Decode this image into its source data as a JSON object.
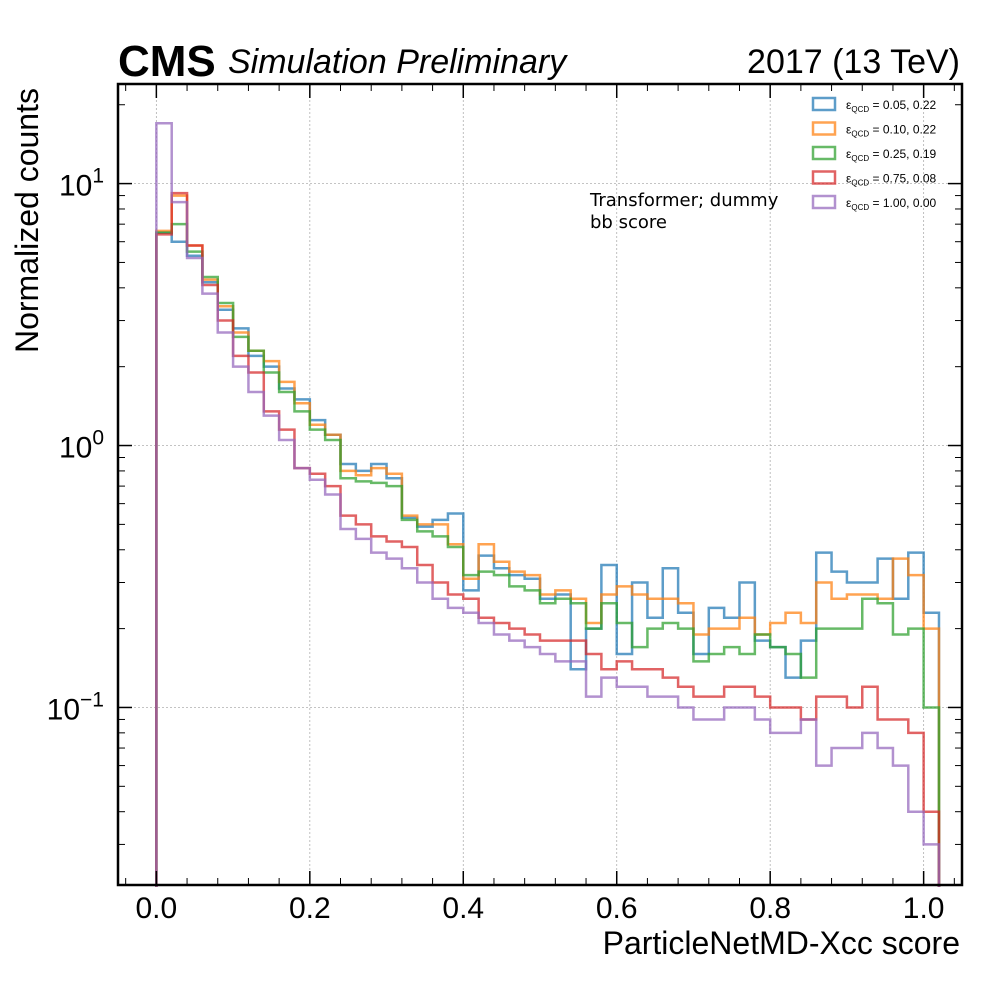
{
  "header": {
    "experiment": "CMS",
    "status": "Simulation Preliminary",
    "lumi": "2017 (13 TeV)"
  },
  "annotation": {
    "line1": "Transformer; dummy",
    "line2": "bb score"
  },
  "chart_data": {
    "type": "histogram-step",
    "xlabel": "ParticleNetMD-Xcc score",
    "ylabel": "Normalized counts",
    "xlim": [
      -0.05,
      1.05
    ],
    "ylim": [
      0.021,
      24
    ],
    "yscale": "log",
    "grid": true,
    "legend_position": "top-right",
    "x_ticks": [
      "0.0",
      "0.2",
      "0.4",
      "0.6",
      "0.8",
      "1.0"
    ],
    "y_tick_mantissa": "10",
    "y_tick_exponents": [
      "1",
      "0",
      "−1"
    ],
    "bin_edges_start": 0.0,
    "bin_width": 0.02,
    "series": [
      {
        "label_sub": "QCD",
        "label_value": " = 0.05, 0.22",
        "color": "#1f77b4",
        "values": [
          6.5,
          6.0,
          5.3,
          4.2,
          3.3,
          2.8,
          2.2,
          2.0,
          1.65,
          1.5,
          1.25,
          1.1,
          0.85,
          0.8,
          0.85,
          0.75,
          0.53,
          0.49,
          0.52,
          0.55,
          0.28,
          0.38,
          0.34,
          0.32,
          0.31,
          0.26,
          0.27,
          0.14,
          0.2,
          0.35,
          0.16,
          0.3,
          0.22,
          0.34,
          0.23,
          0.16,
          0.24,
          0.22,
          0.3,
          0.18,
          0.17,
          0.13,
          0.18,
          0.39,
          0.33,
          0.3,
          0.3,
          0.37,
          0.26,
          0.39,
          0.23
        ]
      },
      {
        "label_sub": "QCD",
        "label_value": " = 0.10, 0.22",
        "color": "#ff7f0e",
        "values": [
          6.6,
          9.0,
          5.8,
          4.3,
          3.4,
          2.7,
          2.3,
          2.1,
          1.75,
          1.45,
          1.2,
          1.1,
          0.8,
          0.77,
          0.82,
          0.78,
          0.54,
          0.5,
          0.5,
          0.42,
          0.31,
          0.42,
          0.36,
          0.33,
          0.32,
          0.27,
          0.28,
          0.26,
          0.21,
          0.27,
          0.29,
          0.27,
          0.26,
          0.26,
          0.25,
          0.19,
          0.2,
          0.2,
          0.22,
          0.19,
          0.21,
          0.23,
          0.21,
          0.3,
          0.26,
          0.27,
          0.27,
          0.26,
          0.37,
          0.32,
          0.2
        ]
      },
      {
        "label_sub": "QCD",
        "label_value": " = 0.25, 0.19",
        "color": "#2ca02c",
        "values": [
          6.5,
          7.0,
          5.5,
          4.4,
          3.5,
          2.6,
          2.3,
          1.9,
          1.6,
          1.35,
          1.15,
          1.05,
          0.75,
          0.73,
          0.72,
          0.7,
          0.52,
          0.47,
          0.45,
          0.41,
          0.32,
          0.33,
          0.32,
          0.29,
          0.28,
          0.25,
          0.26,
          0.25,
          0.2,
          0.25,
          0.21,
          0.17,
          0.2,
          0.21,
          0.2,
          0.15,
          0.16,
          0.17,
          0.16,
          0.19,
          0.17,
          0.16,
          0.13,
          0.2,
          0.2,
          0.2,
          0.26,
          0.25,
          0.19,
          0.2,
          0.1
        ]
      },
      {
        "label_sub": "QCD",
        "label_value": " = 0.75, 0.08",
        "color": "#d62728",
        "values": [
          6.4,
          9.2,
          5.8,
          4.1,
          3.0,
          2.2,
          1.9,
          1.35,
          1.15,
          0.82,
          0.78,
          0.7,
          0.54,
          0.5,
          0.45,
          0.43,
          0.41,
          0.35,
          0.3,
          0.27,
          0.26,
          0.22,
          0.21,
          0.2,
          0.19,
          0.18,
          0.18,
          0.18,
          0.16,
          0.14,
          0.15,
          0.14,
          0.14,
          0.13,
          0.12,
          0.11,
          0.11,
          0.12,
          0.12,
          0.11,
          0.1,
          0.1,
          0.09,
          0.11,
          0.11,
          0.1,
          0.12,
          0.09,
          0.09,
          0.08,
          0.04
        ]
      },
      {
        "label_sub": "QCD",
        "label_value": " = 1.00, 0.00",
        "color": "#9467bd",
        "values": [
          17.0,
          8.5,
          5.2,
          3.8,
          2.7,
          2.0,
          1.6,
          1.3,
          1.05,
          0.82,
          0.74,
          0.65,
          0.48,
          0.44,
          0.39,
          0.37,
          0.34,
          0.3,
          0.26,
          0.24,
          0.23,
          0.21,
          0.19,
          0.18,
          0.17,
          0.16,
          0.15,
          0.15,
          0.11,
          0.13,
          0.12,
          0.12,
          0.11,
          0.11,
          0.1,
          0.09,
          0.09,
          0.1,
          0.1,
          0.09,
          0.08,
          0.08,
          0.09,
          0.06,
          0.07,
          0.07,
          0.08,
          0.07,
          0.06,
          0.04,
          0.03
        ]
      }
    ]
  }
}
